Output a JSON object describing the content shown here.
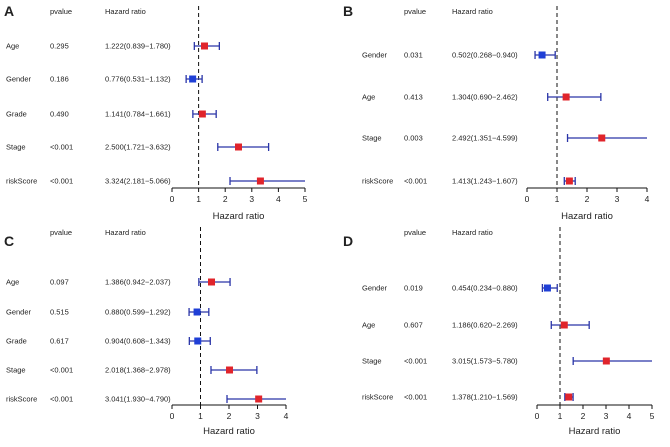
{
  "figure": {
    "header_pvalue": "pvalue",
    "header_hr": "Hazard ratio",
    "marker_colors": {
      "protective": "#1f3fd6",
      "risk": "#e0242b"
    },
    "whisker_color": "#2a35a8"
  },
  "chart_data": [
    {
      "type": "forest",
      "panel": "A",
      "xlabel": "Hazard ratio",
      "xlim": [
        0,
        5
      ],
      "ticks": [
        "0",
        "1",
        "2",
        "3",
        "4",
        "5"
      ],
      "ref_line": 1,
      "rows": [
        {
          "label": "Age",
          "pvalue": "0.295",
          "hr_text": "1.222(0.839−1.780)",
          "hr": 1.222,
          "lo": 0.839,
          "hi": 1.78
        },
        {
          "label": "Gender",
          "pvalue": "0.186",
          "hr_text": "0.776(0.531−1.132)",
          "hr": 0.776,
          "lo": 0.531,
          "hi": 1.132
        },
        {
          "label": "Grade",
          "pvalue": "0.490",
          "hr_text": "1.141(0.784−1.661)",
          "hr": 1.141,
          "lo": 0.784,
          "hi": 1.661
        },
        {
          "label": "Stage",
          "pvalue": "<0.001",
          "hr_text": "2.500(1.721−3.632)",
          "hr": 2.5,
          "lo": 1.721,
          "hi": 3.632
        },
        {
          "label": "riskScore",
          "pvalue": "<0.001",
          "hr_text": "3.324(2.181−5.066)",
          "hr": 3.324,
          "lo": 2.181,
          "hi": 5.066
        }
      ]
    },
    {
      "type": "forest",
      "panel": "B",
      "xlabel": "Hazard ratio",
      "xlim": [
        0,
        4
      ],
      "ticks": [
        "0",
        "1",
        "2",
        "3",
        "4"
      ],
      "ref_line": 1,
      "rows": [
        {
          "label": "Gender",
          "pvalue": "0.031",
          "hr_text": "0.502(0.268−0.940)",
          "hr": 0.502,
          "lo": 0.268,
          "hi": 0.94
        },
        {
          "label": "Age",
          "pvalue": "0.413",
          "hr_text": "1.304(0.690−2.462)",
          "hr": 1.304,
          "lo": 0.69,
          "hi": 2.462
        },
        {
          "label": "Stage",
          "pvalue": "0.003",
          "hr_text": "2.492(1.351−4.599)",
          "hr": 2.492,
          "lo": 1.351,
          "hi": 4.599
        },
        {
          "label": "riskScore",
          "pvalue": "<0.001",
          "hr_text": "1.413(1.243−1.607)",
          "hr": 1.413,
          "lo": 1.243,
          "hi": 1.607
        }
      ]
    },
    {
      "type": "forest",
      "panel": "C",
      "xlabel": "Hazard ratio",
      "xlim": [
        0,
        4
      ],
      "ticks": [
        "0",
        "1",
        "2",
        "3",
        "4"
      ],
      "ref_line": 1,
      "rows": [
        {
          "label": "Age",
          "pvalue": "0.097",
          "hr_text": "1.386(0.942−2.037)",
          "hr": 1.386,
          "lo": 0.942,
          "hi": 2.037
        },
        {
          "label": "Gender",
          "pvalue": "0.515",
          "hr_text": "0.880(0.599−1.292)",
          "hr": 0.88,
          "lo": 0.599,
          "hi": 1.292
        },
        {
          "label": "Grade",
          "pvalue": "0.617",
          "hr_text": "0.904(0.608−1.343)",
          "hr": 0.904,
          "lo": 0.608,
          "hi": 1.343
        },
        {
          "label": "Stage",
          "pvalue": "<0.001",
          "hr_text": "2.018(1.368−2.978)",
          "hr": 2.018,
          "lo": 1.368,
          "hi": 2.978
        },
        {
          "label": "riskScore",
          "pvalue": "<0.001",
          "hr_text": "3.041(1.930−4.790)",
          "hr": 3.041,
          "lo": 1.93,
          "hi": 4.79
        }
      ]
    },
    {
      "type": "forest",
      "panel": "D",
      "xlabel": "Hazard ratio",
      "xlim": [
        0,
        5
      ],
      "ticks": [
        "0",
        "1",
        "2",
        "3",
        "4",
        "5"
      ],
      "ref_line": 1,
      "rows": [
        {
          "label": "Gender",
          "pvalue": "0.019",
          "hr_text": "0.454(0.234−0.880)",
          "hr": 0.454,
          "lo": 0.234,
          "hi": 0.88
        },
        {
          "label": "Age",
          "pvalue": "0.607",
          "hr_text": "1.186(0.620−2.269)",
          "hr": 1.186,
          "lo": 0.62,
          "hi": 2.269
        },
        {
          "label": "Stage",
          "pvalue": "<0.001",
          "hr_text": "3.015(1.573−5.780)",
          "hr": 3.015,
          "lo": 1.573,
          "hi": 5.78
        },
        {
          "label": "riskScore",
          "pvalue": "<0.001",
          "hr_text": "1.378(1.210−1.569)",
          "hr": 1.378,
          "lo": 1.21,
          "hi": 1.569
        }
      ]
    }
  ]
}
